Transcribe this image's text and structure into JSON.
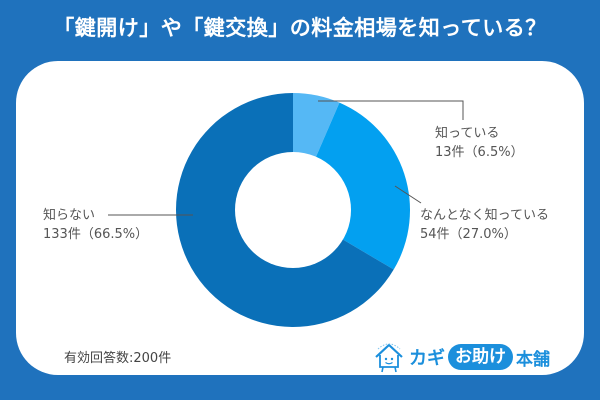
{
  "title": "「鍵開け」や「鍵交換」の料金相場を知っている？",
  "footer": {
    "respondents": "有効回答数:200件"
  },
  "logo": {
    "part1": "カギ",
    "part2": "お助け",
    "part3": "本舗"
  },
  "labels": {
    "know": {
      "name": "知っている",
      "value": "13件（6.5%）"
    },
    "somewhat": {
      "name": "なんとなく知っている",
      "value": "54件（27.0%）"
    },
    "dont_know": {
      "name": "知らない",
      "value": "133件（66.5%）"
    }
  },
  "colors": {
    "background": "#1f72bd",
    "know": "#55b8f5",
    "somewhat": "#03a0f0",
    "dont_know": "#0a70b8"
  },
  "chart_data": {
    "type": "pie",
    "subtype": "donut",
    "title": "「鍵開け」や「鍵交換」の料金相場を知っている？",
    "categories": [
      "知っている",
      "なんとなく知っている",
      "知らない"
    ],
    "values": [
      13,
      54,
      133
    ],
    "percentages": [
      6.5,
      27.0,
      66.5
    ],
    "unit": "件",
    "total": 200,
    "colors": [
      "#55b8f5",
      "#03a0f0",
      "#0a70b8"
    ],
    "start_angle": "12 o'clock, clockwise",
    "legend": "leader-line labels"
  }
}
